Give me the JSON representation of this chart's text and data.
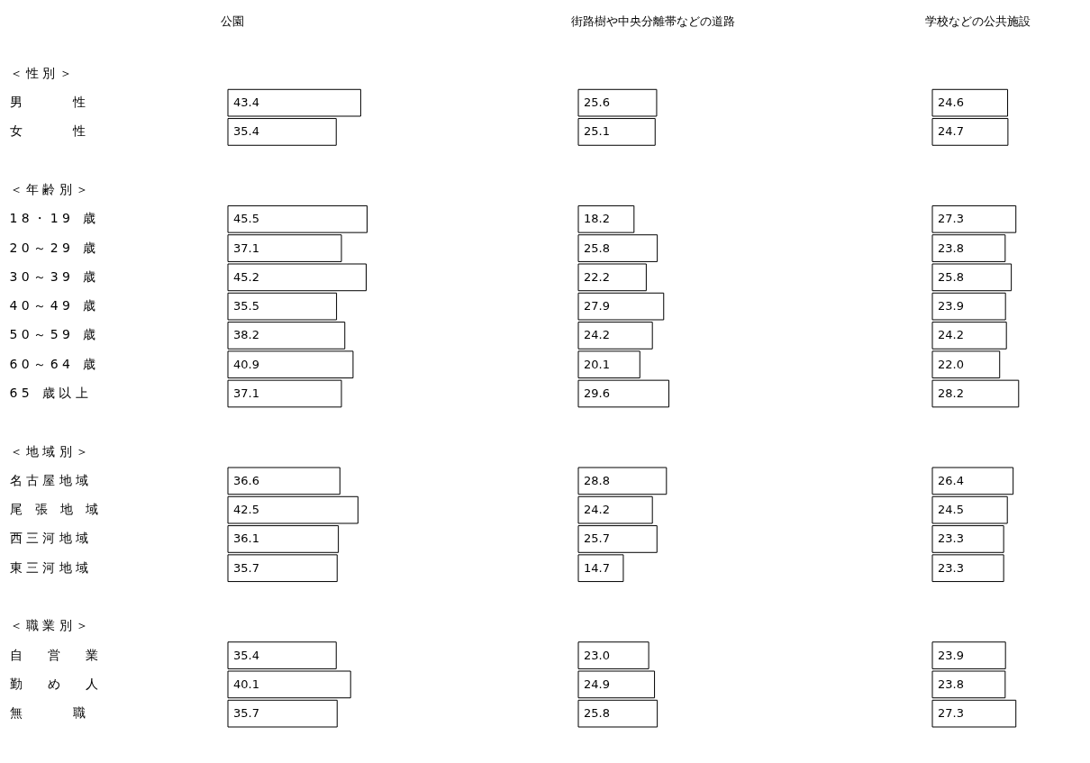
{
  "chart_data": [
    {
      "type": "bar",
      "orientation": "horizontal",
      "title": "公園",
      "color": "#ffffff",
      "tick_labels": "y",
      "categories": [
        "＜ 性 別 ＞",
        "男　　　　性",
        "女　　　　性",
        null,
        "＜ 年 齢 別 ＞",
        "1 8 ・ 1 9　歳",
        "2 0 ～ 2 9　歳",
        "3 0 ～ 3 9　歳",
        "4 0 ～ 4 9　歳",
        "5 0 ～ 5 9　歳",
        "6 0 ～ 6 4　歳",
        "6 5　歳 以 上",
        null,
        "＜ 地 域 別 ＞",
        "名 古 屋 地 域",
        "尾　張　地　域",
        "西 三 河 地 域",
        "東 三 河 地 域",
        null,
        "＜ 職 業 別 ＞",
        "自　　営　　業",
        "勤　　め　　人",
        "無　　　　職"
      ],
      "values": [
        null,
        43.4,
        35.4,
        null,
        null,
        45.5,
        37.1,
        45.2,
        35.5,
        38.2,
        40.9,
        37.1,
        null,
        null,
        36.6,
        42.5,
        36.1,
        35.7,
        null,
        null,
        35.4,
        40.1,
        35.7
      ],
      "value_labels": [
        null,
        "43.4",
        "35.4",
        null,
        null,
        "45.5",
        "37.1",
        "45.2",
        "35.5",
        "38.2",
        "40.9",
        "37.1",
        null,
        null,
        "36.6",
        "42.5",
        "36.1",
        "35.7",
        null,
        null,
        "35.4",
        "40.1",
        "35.7"
      ]
    },
    {
      "type": "bar",
      "orientation": "horizontal",
      "title": "街路樹や中央分離帯などの道路",
      "color": "#ffffff",
      "tick_labels": false,
      "values": [
        null,
        25.6,
        25.1,
        null,
        null,
        18.2,
        25.8,
        22.2,
        27.9,
        24.2,
        20.1,
        29.6,
        null,
        null,
        28.8,
        24.2,
        25.7,
        14.7,
        null,
        null,
        23.0,
        24.9,
        25.8
      ],
      "value_labels": [
        null,
        "25.6",
        "25.1",
        null,
        null,
        "18.2",
        "25.8",
        "22.2",
        "27.9",
        "24.2",
        "20.1",
        "29.6",
        null,
        null,
        "28.8",
        "24.2",
        "25.7",
        "14.7",
        null,
        null,
        "23.0",
        "24.9",
        "25.8"
      ]
    },
    {
      "type": "bar",
      "orientation": "horizontal",
      "title": "学校などの公共施設",
      "color": "#ffffff",
      "tick_labels": false,
      "values": [
        null,
        24.6,
        24.7,
        null,
        null,
        27.3,
        23.8,
        25.8,
        23.9,
        24.2,
        22.0,
        28.2,
        null,
        null,
        26.4,
        24.5,
        23.3,
        23.3,
        null,
        null,
        23.9,
        23.8,
        27.3
      ],
      "value_labels": [
        null,
        "24.6",
        "24.7",
        null,
        null,
        "27.3",
        "23.8",
        "25.8",
        "23.9",
        "24.2",
        "22.0",
        "28.2",
        null,
        null,
        "26.4",
        "24.5",
        "23.3",
        "23.3",
        null,
        null,
        "23.9",
        "23.8",
        "27.3"
      ]
    }
  ]
}
